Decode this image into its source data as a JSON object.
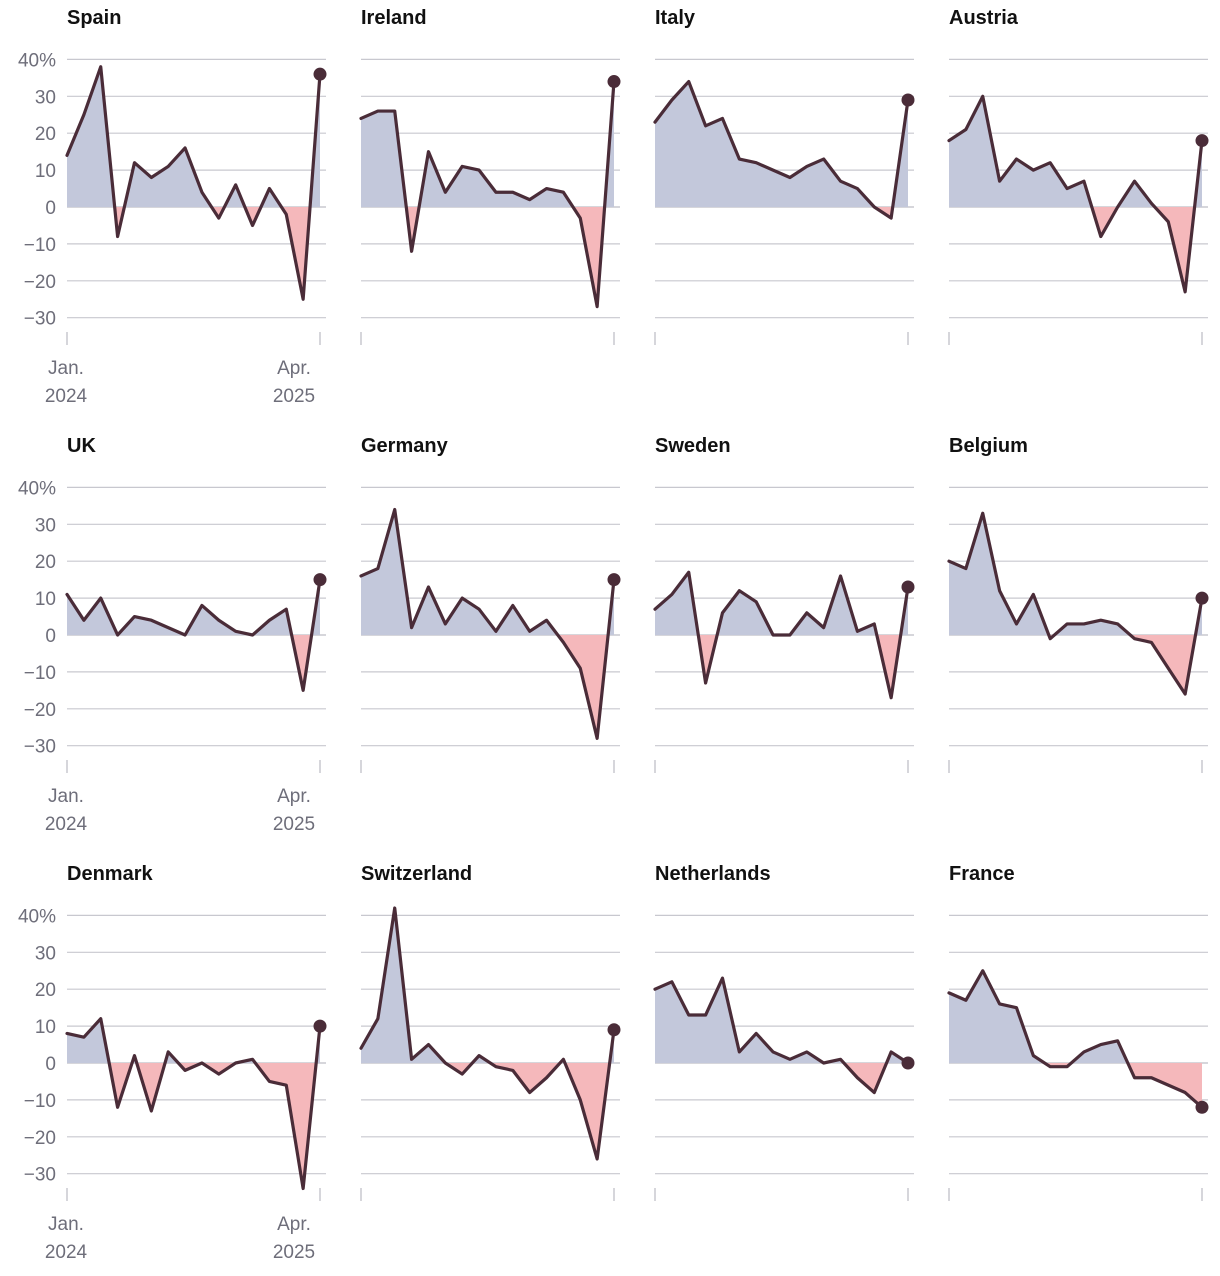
{
  "y_tick_labels": [
    "40%",
    "30",
    "20",
    "10",
    "0",
    "−10",
    "−20",
    "−30"
  ],
  "x_tick_labels": {
    "start": {
      "month": "Jan.",
      "year": "2024"
    },
    "end": {
      "month": "Apr.",
      "year": "2025"
    }
  },
  "colors": {
    "line": "#4a2c38",
    "positive_fill": "#c3c8db",
    "negative_fill": "#f5b8bb",
    "grid": "#c8c8cf",
    "tick_text": "#6e6e7a"
  },
  "chart_data": {
    "type": "area",
    "layout": "small multiples, 3 rows x 4 columns",
    "x": [
      "Jan 2024",
      "Feb 2024",
      "Mar 2024",
      "Apr 2024",
      "May 2024",
      "Jun 2024",
      "Jul 2024",
      "Aug 2024",
      "Sep 2024",
      "Oct 2024",
      "Nov 2024",
      "Dec 2024",
      "Jan 2025",
      "Feb 2025",
      "Mar 2025",
      "Apr 2025"
    ],
    "ylim": [
      -30,
      40
    ],
    "yticks": [
      40,
      30,
      20,
      10,
      0,
      -10,
      -20,
      -30
    ],
    "ylabel_unit": "%",
    "panels": [
      {
        "name": "Spain",
        "values": [
          14,
          25,
          38,
          -8,
          12,
          8,
          11,
          16,
          4,
          -3,
          6,
          -5,
          5,
          -2,
          -25,
          36
        ]
      },
      {
        "name": "Ireland",
        "values": [
          24,
          26,
          26,
          -12,
          15,
          4,
          11,
          10,
          4,
          4,
          2,
          5,
          4,
          -3,
          -27,
          34
        ]
      },
      {
        "name": "Italy",
        "values": [
          23,
          29,
          34,
          22,
          24,
          13,
          12,
          10,
          8,
          11,
          13,
          7,
          5,
          0,
          -3,
          29
        ]
      },
      {
        "name": "Austria",
        "values": [
          18,
          21,
          30,
          7,
          13,
          10,
          12,
          5,
          7,
          -8,
          0,
          7,
          1,
          -4,
          -23,
          18
        ]
      },
      {
        "name": "UK",
        "values": [
          11,
          4,
          10,
          0,
          5,
          4,
          2,
          0,
          8,
          4,
          1,
          0,
          4,
          7,
          -15,
          15
        ]
      },
      {
        "name": "Germany",
        "values": [
          16,
          18,
          34,
          2,
          13,
          3,
          10,
          7,
          1,
          8,
          1,
          4,
          -2,
          -9,
          -28,
          15
        ]
      },
      {
        "name": "Sweden",
        "values": [
          7,
          11,
          17,
          -13,
          6,
          12,
          9,
          0,
          0,
          6,
          2,
          16,
          1,
          3,
          -17,
          13
        ]
      },
      {
        "name": "Belgium",
        "values": [
          20,
          18,
          33,
          12,
          3,
          11,
          -1,
          3,
          3,
          4,
          3,
          -1,
          -2,
          -9,
          -16,
          10
        ]
      },
      {
        "name": "Denmark",
        "values": [
          8,
          7,
          12,
          -12,
          2,
          -13,
          3,
          -2,
          0,
          -3,
          0,
          1,
          -5,
          -6,
          -34,
          10
        ]
      },
      {
        "name": "Switzerland",
        "values": [
          4,
          12,
          42,
          1,
          5,
          0,
          -3,
          2,
          -1,
          -2,
          -8,
          -4,
          1,
          -10,
          -26,
          9
        ]
      },
      {
        "name": "Netherlands",
        "values": [
          20,
          22,
          13,
          13,
          23,
          3,
          8,
          3,
          1,
          3,
          0,
          1,
          -4,
          -8,
          3,
          0
        ]
      },
      {
        "name": "France",
        "values": [
          19,
          17,
          25,
          16,
          15,
          2,
          -1,
          -1,
          3,
          5,
          6,
          -4,
          -4,
          -6,
          -8,
          -12
        ]
      }
    ]
  }
}
